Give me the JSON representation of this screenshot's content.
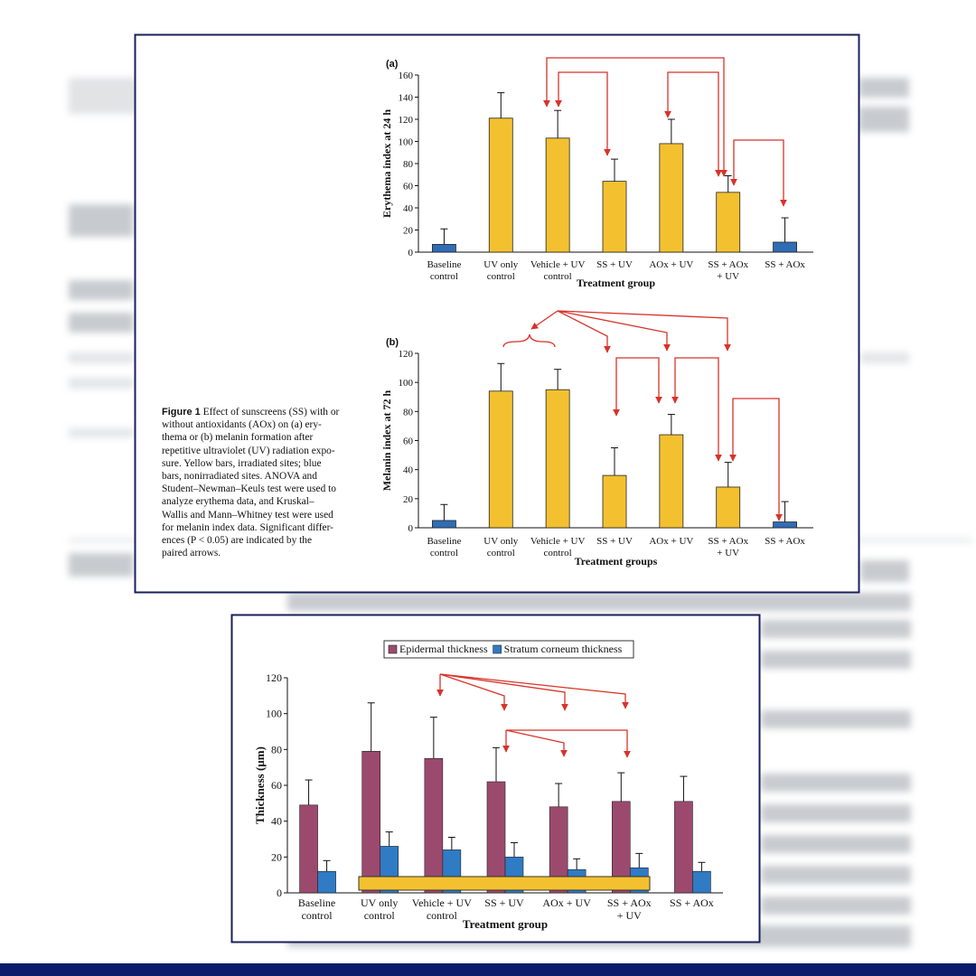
{
  "caption": {
    "label": "Figure 1",
    "lines": [
      "Effect of sunscreens (SS) with or",
      "without antioxidants (AOx) on (a) ery-",
      "thema or (b) melanin formation after",
      "repetitive ultraviolet (UV) radiation expo-",
      "sure. Yellow bars, irradiated sites; blue",
      "bars, nonirradiated sites. ANOVA and",
      "Student–Newman–Keuls test were used to",
      "analyze erythema data, and Kruskal–",
      "Wallis and Mann–Whitney test were used",
      "for melanin index data. Significant differ-",
      "ences (P < 0.05) are indicated by the",
      "paired arrows."
    ]
  },
  "chart_data": [
    {
      "type": "bar",
      "panel_label": "(a)",
      "ylabel": "Erythema index at 24 h",
      "xlabel": "Treatment group",
      "categories": [
        "Baseline\ncontrol",
        "UV only\ncontrol",
        "Vehicle + UV\ncontrol",
        "SS + UV",
        "AOx + UV",
        "SS + AOx\n+ UV",
        "SS + AOx"
      ],
      "values": [
        7,
        121,
        103,
        64,
        98,
        54,
        9
      ],
      "errors": [
        14,
        23,
        25,
        20,
        22,
        15,
        22
      ],
      "colors": [
        "#2f6db5",
        "#f3c12f",
        "#f3c12f",
        "#f3c12f",
        "#f3c12f",
        "#f3c12f",
        "#2f6db5"
      ],
      "ylim": [
        0,
        160
      ],
      "yticks": [
        0,
        20,
        40,
        60,
        80,
        100,
        120,
        140,
        160
      ]
    },
    {
      "type": "bar",
      "panel_label": "(b)",
      "ylabel": "Melanin index at 72 h",
      "xlabel": "Treatment groups",
      "categories": [
        "Baseline\ncontrol",
        "UV only\ncontrol",
        "Vehicle + UV\ncontrol",
        "SS + UV",
        "AOx + UV",
        "SS + AOx\n+ UV",
        "SS + AOx"
      ],
      "values": [
        5,
        94,
        95,
        36,
        64,
        28,
        4
      ],
      "errors": [
        11,
        19,
        14,
        19,
        14,
        17,
        14
      ],
      "colors": [
        "#2f6db5",
        "#f3c12f",
        "#f3c12f",
        "#f3c12f",
        "#f3c12f",
        "#f3c12f",
        "#2f6db5"
      ],
      "ylim": [
        0,
        120
      ],
      "yticks": [
        0,
        20,
        40,
        60,
        80,
        100,
        120
      ]
    },
    {
      "type": "grouped_bar",
      "ylabel": "Thickness (µm)",
      "xlabel": "Treatment group",
      "legend": "top",
      "categories": [
        "Baseline\ncontrol",
        "UV only\ncontrol",
        "Vehicle + UV\ncontrol",
        "SS + UV",
        "AOx + UV",
        "SS + AOx\n+ UV",
        "SS + AOx"
      ],
      "series": [
        {
          "name": "Epidermal thickness",
          "color": "#9b4a6e",
          "values": [
            49,
            79,
            75,
            62,
            48,
            51,
            51
          ],
          "errors": [
            14,
            27,
            23,
            19,
            13,
            16,
            14
          ]
        },
        {
          "name": "Stratum corneum thickness",
          "color": "#2f7bc4",
          "values": [
            12,
            26,
            24,
            20,
            13,
            14,
            12
          ],
          "errors": [
            6,
            8,
            7,
            8,
            6,
            8,
            5
          ]
        }
      ],
      "ylim": [
        0,
        120
      ],
      "yticks": [
        0,
        20,
        40,
        60,
        80,
        100,
        120
      ]
    }
  ]
}
